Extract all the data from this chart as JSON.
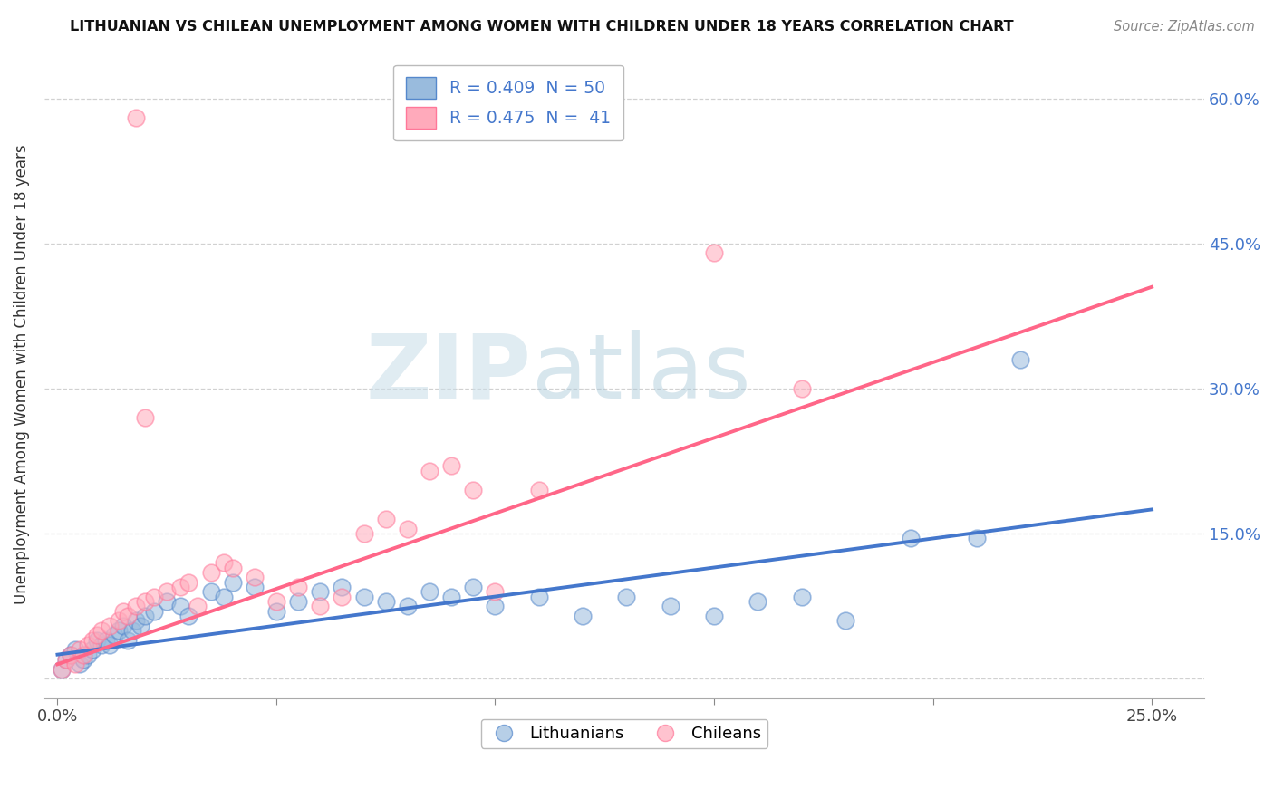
{
  "title": "LITHUANIAN VS CHILEAN UNEMPLOYMENT AMONG WOMEN WITH CHILDREN UNDER 18 YEARS CORRELATION CHART",
  "source": "Source: ZipAtlas.com",
  "ylabel": "Unemployment Among Women with Children Under 18 years",
  "xlim": [
    -0.003,
    0.262
  ],
  "ylim": [
    -0.02,
    0.65
  ],
  "blue_R": 0.409,
  "blue_N": 50,
  "pink_R": 0.475,
  "pink_N": 41,
  "blue_color": "#99BBDD",
  "pink_color": "#FFAABB",
  "blue_edge_color": "#5588CC",
  "pink_edge_color": "#FF7799",
  "blue_line_color": "#4477CC",
  "pink_line_color": "#FF6688",
  "watermark_color": "#D8EEF5",
  "blue_scatter_x": [
    0.001,
    0.002,
    0.003,
    0.004,
    0.005,
    0.006,
    0.007,
    0.008,
    0.009,
    0.01,
    0.011,
    0.012,
    0.013,
    0.014,
    0.015,
    0.016,
    0.017,
    0.018,
    0.019,
    0.02,
    0.022,
    0.025,
    0.028,
    0.03,
    0.035,
    0.038,
    0.04,
    0.045,
    0.05,
    0.055,
    0.06,
    0.065,
    0.07,
    0.075,
    0.08,
    0.085,
    0.09,
    0.095,
    0.1,
    0.11,
    0.12,
    0.13,
    0.14,
    0.15,
    0.16,
    0.17,
    0.18,
    0.195,
    0.21,
    0.22
  ],
  "blue_scatter_y": [
    0.01,
    0.02,
    0.025,
    0.03,
    0.015,
    0.02,
    0.025,
    0.03,
    0.04,
    0.035,
    0.04,
    0.035,
    0.045,
    0.05,
    0.055,
    0.04,
    0.05,
    0.06,
    0.055,
    0.065,
    0.07,
    0.08,
    0.075,
    0.065,
    0.09,
    0.085,
    0.1,
    0.095,
    0.07,
    0.08,
    0.09,
    0.095,
    0.085,
    0.08,
    0.075,
    0.09,
    0.085,
    0.095,
    0.075,
    0.085,
    0.065,
    0.085,
    0.075,
    0.065,
    0.08,
    0.085,
    0.06,
    0.145,
    0.145,
    0.33
  ],
  "pink_scatter_x": [
    0.001,
    0.002,
    0.003,
    0.004,
    0.005,
    0.006,
    0.007,
    0.008,
    0.009,
    0.01,
    0.012,
    0.014,
    0.015,
    0.016,
    0.018,
    0.02,
    0.022,
    0.025,
    0.028,
    0.03,
    0.032,
    0.035,
    0.038,
    0.04,
    0.045,
    0.05,
    0.055,
    0.06,
    0.065,
    0.07,
    0.075,
    0.08,
    0.085,
    0.09,
    0.095,
    0.1,
    0.11,
    0.15,
    0.17,
    0.02,
    0.018
  ],
  "pink_scatter_y": [
    0.01,
    0.02,
    0.025,
    0.015,
    0.03,
    0.025,
    0.035,
    0.04,
    0.045,
    0.05,
    0.055,
    0.06,
    0.07,
    0.065,
    0.075,
    0.08,
    0.085,
    0.09,
    0.095,
    0.1,
    0.075,
    0.11,
    0.12,
    0.115,
    0.105,
    0.08,
    0.095,
    0.075,
    0.085,
    0.15,
    0.165,
    0.155,
    0.215,
    0.22,
    0.195,
    0.09,
    0.195,
    0.44,
    0.3,
    0.27,
    0.58
  ],
  "blue_trend_x": [
    0.0,
    0.25
  ],
  "blue_trend_y": [
    0.025,
    0.175
  ],
  "pink_trend_x": [
    0.0,
    0.25
  ],
  "pink_trend_y": [
    0.015,
    0.405
  ],
  "xticks": [
    0.0,
    0.05,
    0.1,
    0.15,
    0.2,
    0.25
  ],
  "xticklabels": [
    "0.0%",
    "",
    "",
    "",
    "",
    "25.0%"
  ],
  "yticks": [
    0.0,
    0.15,
    0.3,
    0.45,
    0.6
  ],
  "yticklabels_right": [
    "",
    "15.0%",
    "30.0%",
    "45.0%",
    "60.0%"
  ]
}
